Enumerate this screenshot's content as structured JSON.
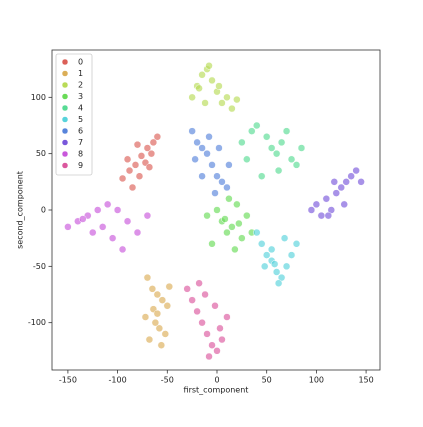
{
  "chart_data": {
    "type": "scatter",
    "xlabel": "first_component",
    "ylabel": "second_component",
    "xlim": [
      -166,
      164
    ],
    "ylim": [
      -142,
      142
    ],
    "xticks": [
      -150,
      -100,
      -50,
      0,
      50,
      100,
      150
    ],
    "yticks": [
      -100,
      -50,
      0,
      50,
      100
    ],
    "grid": false,
    "legend": "upper left",
    "series": [
      {
        "name": "0",
        "color": "#db5f57",
        "x": [
          -95,
          -88,
          -82,
          -76,
          -70,
          -64,
          -60,
          -85,
          -78,
          -72,
          -66,
          -90,
          -80,
          -68
        ],
        "y": [
          28,
          35,
          40,
          48,
          55,
          60,
          65,
          20,
          30,
          42,
          50,
          45,
          58,
          38
        ]
      },
      {
        "name": "1",
        "color": "#dbae57",
        "x": [
          -70,
          -65,
          -60,
          -55,
          -50,
          -72,
          -62,
          -58,
          -52,
          -68,
          -56,
          -64,
          -48,
          -60
        ],
        "y": [
          -60,
          -70,
          -75,
          -80,
          -85,
          -95,
          -100,
          -105,
          -110,
          -115,
          -120,
          -88,
          -68,
          -92
        ]
      },
      {
        "name": "2",
        "color": "#b9db57",
        "x": [
          -25,
          -20,
          -15,
          -10,
          -5,
          0,
          5,
          10,
          15,
          20,
          -12,
          -8,
          2,
          -18
        ],
        "y": [
          100,
          110,
          120,
          125,
          115,
          105,
          95,
          100,
          90,
          98,
          95,
          128,
          110,
          108
        ]
      },
      {
        "name": "3",
        "color": "#69db57",
        "x": [
          -10,
          0,
          5,
          10,
          15,
          20,
          25,
          30,
          -5,
          12,
          18,
          35,
          8,
          22
        ],
        "y": [
          -5,
          0,
          -10,
          -20,
          -15,
          5,
          -25,
          -5,
          -30,
          10,
          -35,
          -20,
          -8,
          -12
        ]
      },
      {
        "name": "4",
        "color": "#57db94",
        "x": [
          25,
          35,
          40,
          50,
          55,
          60,
          65,
          70,
          75,
          80,
          45,
          62,
          85,
          30
        ],
        "y": [
          60,
          70,
          75,
          65,
          55,
          50,
          60,
          70,
          45,
          40,
          30,
          35,
          55,
          45
        ]
      },
      {
        "name": "5",
        "color": "#57d3db",
        "x": [
          40,
          45,
          50,
          55,
          60,
          65,
          70,
          75,
          55,
          62,
          48,
          68,
          58,
          80
        ],
        "y": [
          -20,
          -30,
          -40,
          -45,
          -55,
          -60,
          -50,
          -40,
          -35,
          -65,
          -50,
          -25,
          -48,
          -30
        ]
      },
      {
        "name": "6",
        "color": "#5784db",
        "x": [
          -25,
          -20,
          -15,
          -10,
          -5,
          0,
          5,
          10,
          -22,
          -8,
          2,
          -15,
          12,
          -2
        ],
        "y": [
          70,
          60,
          55,
          50,
          40,
          30,
          25,
          20,
          45,
          65,
          55,
          30,
          40,
          15
        ]
      },
      {
        "name": "7",
        "color": "#7957db",
        "x": [
          95,
          100,
          105,
          110,
          115,
          120,
          125,
          130,
          135,
          140,
          145,
          112,
          128,
          118
        ],
        "y": [
          0,
          5,
          -5,
          10,
          0,
          15,
          20,
          25,
          30,
          35,
          25,
          -5,
          5,
          25
        ]
      },
      {
        "name": "8",
        "color": "#c957db",
        "x": [
          -150,
          -140,
          -130,
          -120,
          -110,
          -100,
          -90,
          -80,
          -70,
          -125,
          -105,
          -95,
          -115,
          -135
        ],
        "y": [
          -15,
          -10,
          -5,
          0,
          5,
          0,
          -10,
          -20,
          -5,
          -20,
          -25,
          -35,
          -15,
          -8
        ]
      },
      {
        "name": "9",
        "color": "#db579e",
        "x": [
          -30,
          -25,
          -20,
          -15,
          -10,
          -5,
          0,
          5,
          10,
          -12,
          -2,
          -18,
          3,
          -8
        ],
        "y": [
          -70,
          -80,
          -90,
          -100,
          -110,
          -120,
          -125,
          -115,
          -95,
          -75,
          -85,
          -65,
          -105,
          -130
        ]
      }
    ]
  }
}
